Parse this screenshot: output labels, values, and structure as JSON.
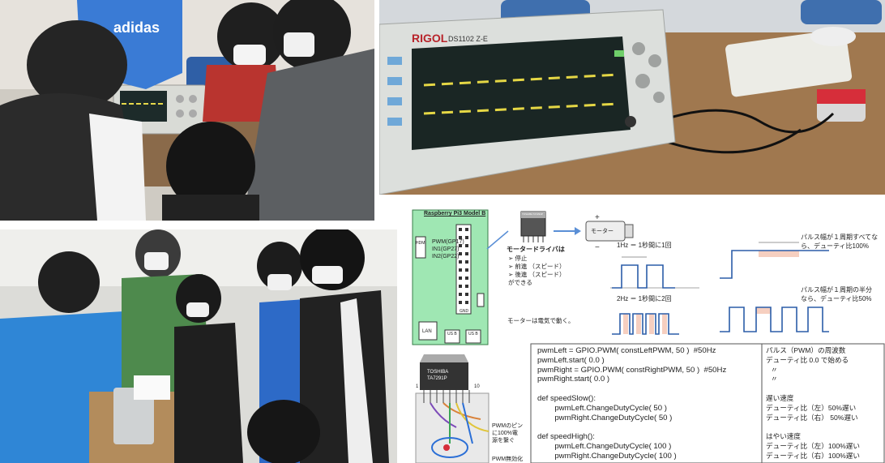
{
  "photos": {
    "top_left": {
      "shirt_text": "adidas"
    },
    "top_right": {
      "scope_brand": "RIGOL",
      "scope_model": "DS1102 Z-E"
    }
  },
  "diagram": {
    "board": {
      "title": "Raspberry Pi3 Model B",
      "pins": [
        "PWM(GP17)",
        "IN1(GP27)",
        "IN2(GP22)"
      ],
      "gnd": "GND",
      "ports": [
        "LAN",
        "US B",
        "US B"
      ],
      "side": "HDMI"
    },
    "driver": {
      "chip_top": "TOSHIBA TA7291P",
      "title": "モータードライバは",
      "items": [
        "停止",
        "前進 （スピード）",
        "後進 （スピード）"
      ],
      "ending": "ができる"
    },
    "motor_label": "モーター",
    "motor_note": "モーターは電気で動く。",
    "freq": {
      "one_hz": "1Hz ＝ 1秒間に1回",
      "two_hz": "2Hz ＝ 1秒間に2回"
    },
    "duty": {
      "full": [
        "パルス幅が１周期すべてな",
        "ら、デューティ比100%"
      ],
      "half": [
        "パルス幅が１周期の半分",
        "なら、デューティ比50%"
      ]
    },
    "chip": {
      "brand": "TOSHIBA",
      "model": "TA7291P",
      "pin_first": "1",
      "pin_last": "10",
      "note": [
        "PWMのピン",
        "に100%電",
        "源を繋ぐ"
      ],
      "cut_note": "PWM無効化"
    },
    "code": [
      "pwmLeft = GPIO.PWM( constLeftPWM, 50 )  #50Hz",
      "pwmLeft.start( 0.0 )",
      "pwmRight = GPIO.PWM( constRightPWM, 50 )  #50Hz",
      "pwmRight.start( 0.0 )",
      "",
      "def speedSlow():",
      "        pwmLeft.ChangeDutyCycle( 50 )",
      "        pwmRight.ChangeDutyCycle( 50 )",
      "",
      "def speedHigh():",
      "        pwmLeft.ChangeDutyCycle( 100 )",
      "        pwmRight.ChangeDutyCycle( 100 )"
    ],
    "notes": [
      "パルス（PWM）の周波数",
      "デューティ比 0.0 で始める",
      "〃",
      "〃",
      "",
      "遅い速度",
      "デューティ比（左）50%遅い",
      "デューティ比（右）  50%遅い",
      "",
      "はやい速度",
      "デューティ比（左）100%遅い",
      "デューティ比（右）100%遅い"
    ]
  }
}
